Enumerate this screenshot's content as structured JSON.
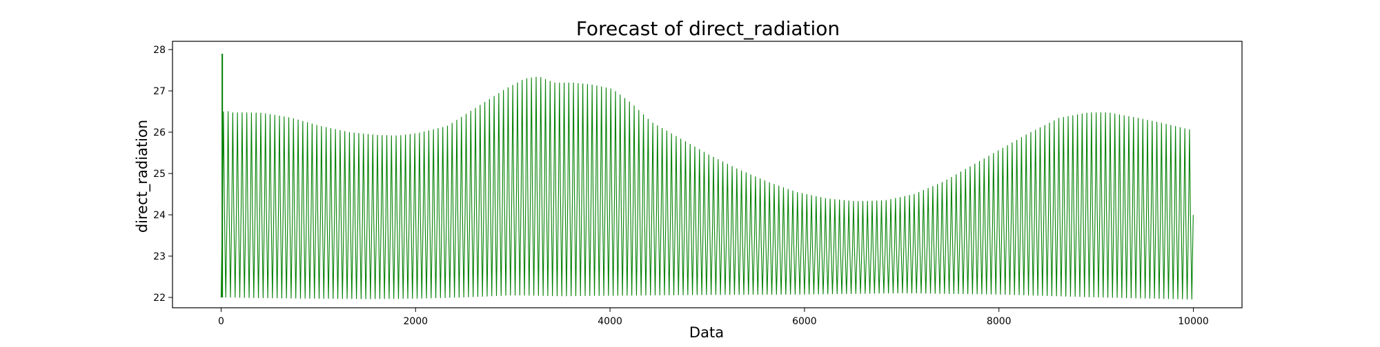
{
  "chart_data": {
    "type": "line",
    "title": "Forecast of direct_radiation",
    "xlabel": "Data",
    "ylabel": "direct_radiation",
    "xlim": [
      -500,
      10500
    ],
    "ylim": [
      21.75,
      28.2
    ],
    "xticks": [
      0,
      2000,
      4000,
      6000,
      8000,
      10000
    ],
    "yticks": [
      22,
      23,
      24,
      25,
      26,
      27,
      28
    ],
    "grid": false,
    "legend": "none",
    "series_color": "#008000",
    "cycle_period": 48,
    "x_range": [
      0,
      10000
    ],
    "initial_spike": {
      "x": 12,
      "y": 27.9
    },
    "upper_envelope": {
      "x": [
        0,
        30,
        60,
        200,
        400,
        700,
        1000,
        1300,
        1600,
        1800,
        2000,
        2300,
        2600,
        2900,
        3100,
        3250,
        3400,
        3600,
        3800,
        4000,
        4200,
        4400,
        4700,
        5000,
        5300,
        5600,
        5900,
        6200,
        6500,
        6800,
        7100,
        7400,
        7700,
        8000,
        8300,
        8600,
        8900,
        9100,
        9400,
        9700,
        10000
      ],
      "y": [
        26.5,
        26.55,
        26.48,
        26.48,
        26.47,
        26.35,
        26.15,
        26.0,
        25.93,
        25.92,
        25.98,
        26.15,
        26.6,
        27.05,
        27.3,
        27.35,
        27.2,
        27.2,
        27.15,
        27.05,
        26.7,
        26.25,
        25.85,
        25.45,
        25.1,
        24.8,
        24.55,
        24.4,
        24.33,
        24.35,
        24.5,
        24.8,
        25.2,
        25.6,
        26.0,
        26.35,
        26.48,
        26.48,
        26.35,
        26.2,
        26.03
      ]
    },
    "lower_envelope": {
      "x": [
        0,
        500,
        1000,
        1500,
        2000,
        2500,
        3000,
        3500,
        4000,
        5000,
        6000,
        7000,
        8000,
        9000,
        10000
      ],
      "y": [
        22.0,
        21.98,
        21.97,
        21.96,
        21.97,
        22.0,
        22.05,
        22.03,
        22.04,
        22.06,
        22.07,
        22.1,
        22.07,
        22.0,
        21.95
      ]
    }
  }
}
